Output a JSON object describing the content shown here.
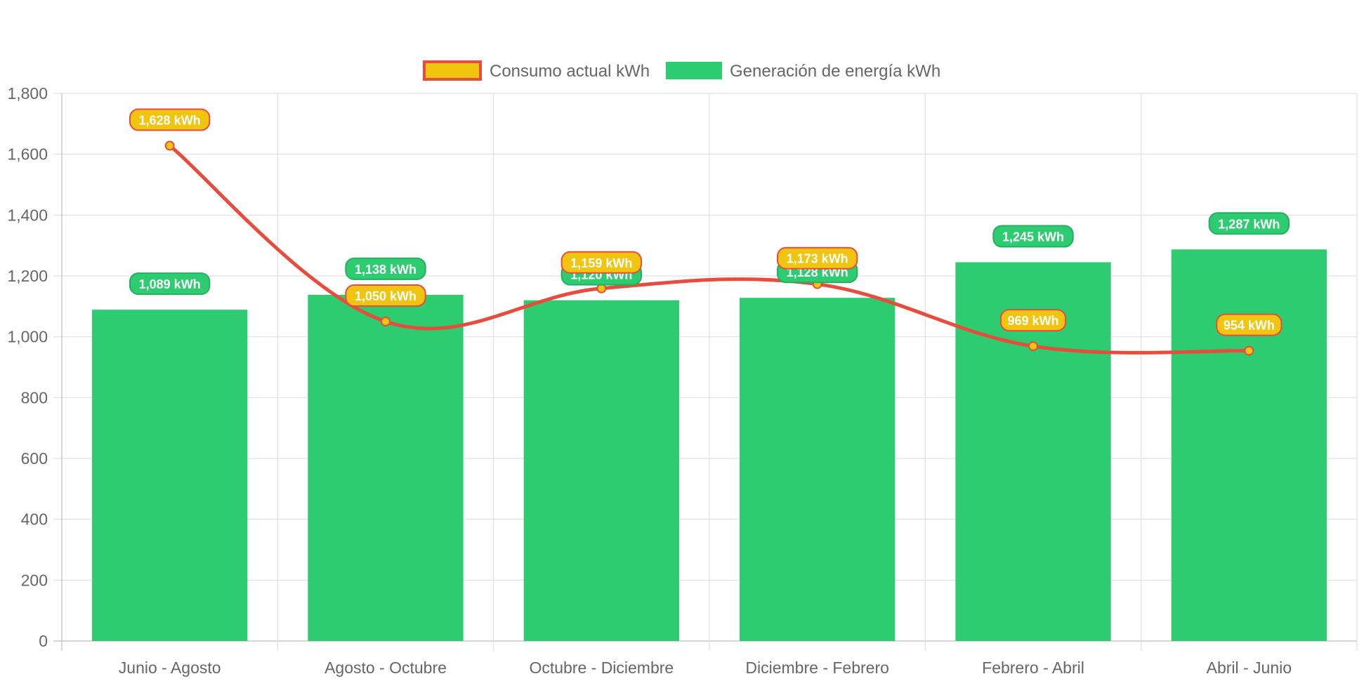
{
  "chart_data": {
    "type": "bar",
    "categories": [
      "Junio - Agosto",
      "Agosto - Octubre",
      "Octubre - Diciembre",
      "Diciembre - Febrero",
      "Febrero - Abril",
      "Abril - Junio"
    ],
    "series": [
      {
        "name": "Consumo actual kWh",
        "type": "line",
        "values": [
          1628,
          1050,
          1159,
          1173,
          969,
          954
        ],
        "labels": [
          "1,628 kWh",
          "1,050 kWh",
          "1,159 kWh",
          "1,173 kWh",
          "969 kWh",
          "954 kWh"
        ],
        "color": "#e74c3c",
        "fill_color": "#f1c40f"
      },
      {
        "name": "Generación de energía kWh",
        "type": "bar",
        "values": [
          1089,
          1138,
          1120,
          1128,
          1245,
          1287
        ],
        "labels": [
          "1,089 kWh",
          "1,138 kWh",
          "1,120 kWh",
          "1,128 kWh",
          "1,245 kWh",
          "1,287 kWh"
        ],
        "color": "#2ecc71",
        "border_color": "#27ae60"
      }
    ],
    "ylim": [
      0,
      1800
    ],
    "yticks": [
      0,
      200,
      400,
      600,
      800,
      1000,
      1200,
      1400,
      1600,
      1800
    ],
    "ytick_labels": [
      "0",
      "200",
      "400",
      "600",
      "800",
      "1,000",
      "1,200",
      "1,400",
      "1,600",
      "1,800"
    ],
    "grid": true,
    "legend_position": "top-center",
    "title": "",
    "xlabel": "",
    "ylabel": ""
  }
}
